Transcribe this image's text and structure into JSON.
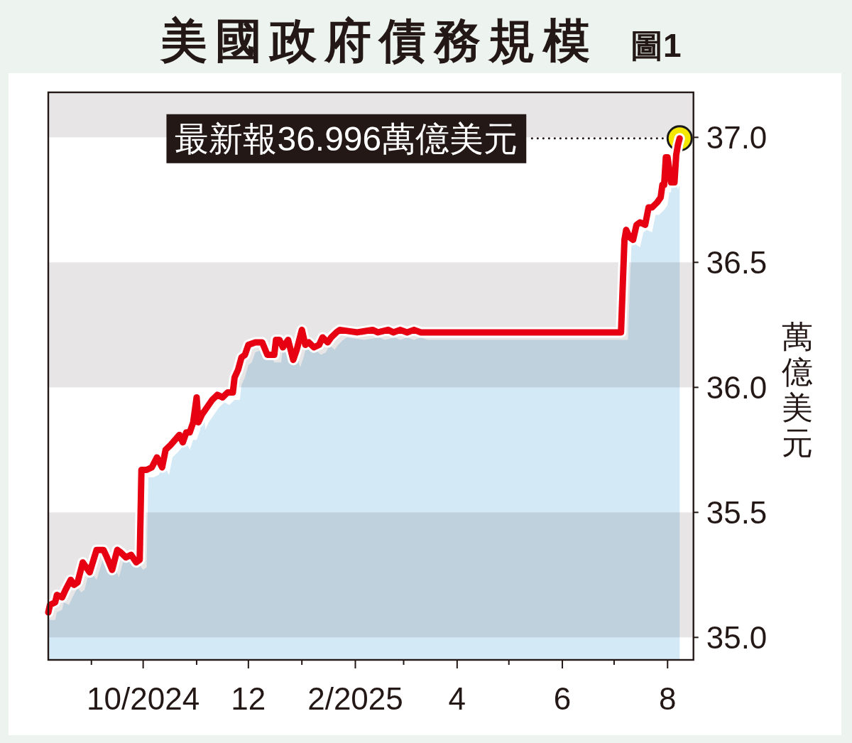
{
  "chart_data": {
    "type": "line",
    "title": "美國政府債務規模",
    "subtitle": "圖1",
    "ylabel": "萬億美元",
    "x": [
      "2024-08-07",
      "2024-08-08",
      "2024-08-11",
      "2024-08-12",
      "2024-08-15",
      "2024-08-17",
      "2024-08-20",
      "2024-08-22",
      "2024-08-24",
      "2024-08-27",
      "2024-08-31",
      "2024-09-04",
      "2024-09-08",
      "2024-09-10",
      "2024-09-13",
      "2024-09-16",
      "2024-09-18",
      "2024-09-21",
      "2024-09-24",
      "2024-09-27",
      "2024-09-29",
      "2024-09-30",
      "2024-10-03",
      "2024-10-06",
      "2024-10-09",
      "2024-10-12",
      "2024-10-14",
      "2024-10-17",
      "2024-10-22",
      "2024-10-24",
      "2024-10-26",
      "2024-10-28",
      "2024-10-30",
      "2024-11-01",
      "2024-11-02",
      "2024-11-04",
      "2024-11-07",
      "2024-11-10",
      "2024-11-13",
      "2024-11-16",
      "2024-11-19",
      "2024-11-22",
      "2024-11-23",
      "2024-11-25",
      "2024-11-27",
      "2024-11-29",
      "2024-12-01",
      "2024-12-05",
      "2024-12-09",
      "2024-12-12",
      "2024-12-16",
      "2024-12-17",
      "2024-12-19",
      "2024-12-21",
      "2024-12-24",
      "2024-12-27",
      "2024-12-29",
      "2025-01-01",
      "2025-01-03",
      "2025-01-05",
      "2025-01-08",
      "2025-01-11",
      "2025-01-13",
      "2025-01-16",
      "2025-01-18",
      "2025-01-21",
      "2025-01-23",
      "2025-02-02",
      "2025-02-11",
      "2025-02-14",
      "2025-02-20",
      "2025-02-23",
      "2025-02-27",
      "2025-03-03",
      "2025-03-07",
      "2025-03-11",
      "2025-03-21",
      "2025-04-01",
      "2025-04-17",
      "2025-05-01",
      "2025-05-19",
      "2025-06-01",
      "2025-06-17",
      "2025-07-01",
      "2025-07-05",
      "2025-07-07",
      "2025-07-08",
      "2025-07-10",
      "2025-07-12",
      "2025-07-14",
      "2025-07-16",
      "2025-07-19",
      "2025-07-21",
      "2025-07-23",
      "2025-07-26",
      "2025-07-28",
      "2025-07-29",
      "2025-07-30",
      "2025-07-31",
      "2025-08-01",
      "2025-08-03",
      "2025-08-05",
      "2025-08-06",
      "2025-08-07",
      "2025-08-08"
    ],
    "series": [
      {
        "type": "area",
        "color": "#d4e9f6",
        "x": [
          "2024-08-07",
          "2024-08-11",
          "2024-08-12",
          "2024-08-15",
          "2024-08-16",
          "2024-08-19",
          "2024-08-21",
          "2024-08-24",
          "2024-08-26",
          "2024-08-28",
          "2024-08-31",
          "2024-09-04",
          "2024-09-08",
          "2024-09-12",
          "2024-09-14",
          "2024-09-17",
          "2024-09-20",
          "2024-09-22",
          "2024-09-25",
          "2024-09-28",
          "2024-10-01",
          "2024-10-03",
          "2024-10-04",
          "2024-10-07",
          "2024-10-10",
          "2024-10-13",
          "2024-10-16",
          "2024-10-18",
          "2024-10-21",
          "2024-10-26",
          "2024-10-28",
          "2024-10-30",
          "2024-11-01",
          "2024-11-03",
          "2024-11-05",
          "2024-11-06",
          "2024-11-08",
          "2024-11-11",
          "2024-11-14",
          "2024-11-17",
          "2024-11-20",
          "2024-11-23",
          "2024-11-26",
          "2024-11-27",
          "2024-11-29",
          "2024-12-01",
          "2024-12-03",
          "2024-12-05",
          "2024-12-09",
          "2024-12-13",
          "2024-12-16",
          "2024-12-20",
          "2024-12-21",
          "2024-12-23",
          "2024-12-25",
          "2024-12-28",
          "2024-12-31",
          "2025-01-02",
          "2025-01-05",
          "2025-01-07",
          "2025-01-09",
          "2025-01-12",
          "2025-01-15",
          "2025-01-17",
          "2025-01-20",
          "2025-01-22",
          "2025-01-25",
          "2025-01-27",
          "2025-02-06",
          "2025-02-15",
          "2025-02-18",
          "2025-02-24",
          "2025-02-27",
          "2025-03-03",
          "2025-03-07",
          "2025-03-11",
          "2025-03-15",
          "2025-03-25",
          "2025-04-05",
          "2025-04-21",
          "2025-05-05",
          "2025-05-23",
          "2025-06-05",
          "2025-06-21",
          "2025-07-05",
          "2025-07-09",
          "2025-07-11",
          "2025-07-12",
          "2025-07-14",
          "2025-07-16",
          "2025-07-18",
          "2025-07-20",
          "2025-07-23",
          "2025-07-25",
          "2025-07-27",
          "2025-07-30",
          "2025-08-01",
          "2025-08-02",
          "2025-08-03",
          "2025-08-04",
          "2025-08-05",
          "2025-08-07",
          "2025-08-08"
        ],
        "values": [
          35.07,
          35.07,
          35.1,
          35.11,
          35.14,
          35.13,
          35.16,
          35.2,
          35.18,
          35.19,
          35.27,
          35.23,
          35.32,
          35.32,
          35.29,
          35.24,
          35.32,
          35.31,
          35.29,
          35.3,
          35.27,
          35.28,
          35.64,
          35.64,
          35.65,
          35.69,
          35.65,
          35.72,
          35.74,
          35.78,
          35.75,
          35.79,
          35.79,
          35.83,
          35.93,
          35.83,
          35.86,
          35.89,
          35.92,
          35.94,
          35.93,
          35.95,
          35.95,
          36.01,
          36.04,
          36.09,
          36.1,
          36.14,
          36.15,
          36.15,
          36.1,
          36.1,
          36.16,
          36.16,
          36.13,
          36.16,
          36.08,
          36.12,
          36.2,
          36.14,
          36.15,
          36.13,
          36.14,
          36.17,
          36.15,
          36.17,
          36.19,
          36.2,
          36.19,
          36.2,
          36.19,
          36.2,
          36.19,
          36.2,
          36.19,
          36.2,
          36.19,
          36.19,
          36.19,
          36.19,
          36.19,
          36.19,
          36.19,
          36.19,
          36.19,
          36.19,
          36.56,
          36.6,
          36.57,
          36.56,
          36.62,
          36.63,
          36.62,
          36.69,
          36.69,
          36.71,
          36.73,
          36.78,
          36.78,
          36.89,
          36.89,
          36.79,
          36.81
        ]
      },
      {
        "type": "line",
        "color": "#e60012",
        "values": [
          35.1,
          35.13,
          35.14,
          35.17,
          35.16,
          35.19,
          35.23,
          35.21,
          35.22,
          35.3,
          35.26,
          35.35,
          35.35,
          35.32,
          35.27,
          35.35,
          35.34,
          35.32,
          35.33,
          35.3,
          35.31,
          35.67,
          35.67,
          35.68,
          35.72,
          35.68,
          35.75,
          35.77,
          35.81,
          35.78,
          35.82,
          35.82,
          35.86,
          35.96,
          35.86,
          35.89,
          35.92,
          35.95,
          35.97,
          35.96,
          35.98,
          35.98,
          36.04,
          36.07,
          36.12,
          36.13,
          36.17,
          36.18,
          36.18,
          36.13,
          36.13,
          36.19,
          36.19,
          36.16,
          36.19,
          36.11,
          36.15,
          36.23,
          36.17,
          36.18,
          36.16,
          36.17,
          36.2,
          36.18,
          36.2,
          36.22,
          36.23,
          36.22,
          36.23,
          36.22,
          36.23,
          36.22,
          36.23,
          36.22,
          36.23,
          36.22,
          36.22,
          36.22,
          36.22,
          36.22,
          36.22,
          36.22,
          36.22,
          36.22,
          36.22,
          36.59,
          36.63,
          36.6,
          36.59,
          36.65,
          36.66,
          36.65,
          36.72,
          36.72,
          36.74,
          36.76,
          36.81,
          36.81,
          36.92,
          36.92,
          36.82,
          36.82,
          36.93,
          36.97,
          36.996
        ]
      }
    ],
    "xlim": [
      "2024-08-07",
      "2025-08-16"
    ],
    "xticks": [
      {
        "value": "2024-09-01",
        "label": null
      },
      {
        "value": "2024-10-01",
        "label": "10/2024"
      },
      {
        "value": "2024-11-01",
        "label": null
      },
      {
        "value": "2024-12-01",
        "label": "12"
      },
      {
        "value": "2025-01-01",
        "label": null
      },
      {
        "value": "2025-02-01",
        "label": "2/2025"
      },
      {
        "value": "2025-03-01",
        "label": null
      },
      {
        "value": "2025-04-01",
        "label": "4"
      },
      {
        "value": "2025-05-01",
        "label": null
      },
      {
        "value": "2025-06-01",
        "label": "6"
      },
      {
        "value": "2025-07-01",
        "label": null
      },
      {
        "value": "2025-08-01",
        "label": "8"
      }
    ],
    "ylim": [
      34.91,
      37.18
    ],
    "yticks": [
      {
        "value": 35,
        "label": "35.0"
      },
      35.5,
      {
        "value": 36,
        "label": "36.0"
      },
      36.5,
      {
        "value": 37,
        "label": "37.0"
      }
    ],
    "bands": [
      {
        "axis": "y",
        "from": 37.0,
        "to": 37.18,
        "color": "#e7e5e6"
      },
      {
        "axis": "y",
        "from": 36.0,
        "to": 36.5,
        "color": "#e7e5e6"
      },
      {
        "axis": "y",
        "from": 35.0,
        "to": 35.5,
        "color": "#e7e5e6"
      }
    ],
    "annotations": [
      {
        "text": "最新報36.996萬億美元",
        "x": "2025-08-08",
        "y": 36.996
      }
    ]
  }
}
